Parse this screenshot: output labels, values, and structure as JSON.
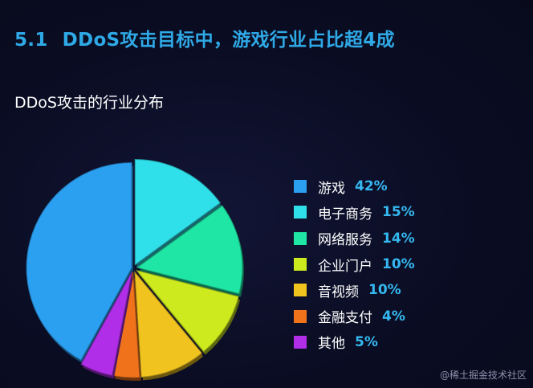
{
  "header": {
    "section_number": "5.1",
    "title": "DDoS攻击目标中，游戏行业占比超4成"
  },
  "chart_data": {
    "type": "pie",
    "title": "DDoS攻击的行业分布",
    "slices": [
      {
        "label": "游戏",
        "value": 42,
        "display": "42%",
        "color": "#2b9ff0"
      },
      {
        "label": "电子商务",
        "value": 15,
        "display": "15%",
        "color": "#2fe0ea"
      },
      {
        "label": "网络服务",
        "value": 14,
        "display": "14%",
        "color": "#1fe6a4"
      },
      {
        "label": "企业门户",
        "value": 10,
        "display": "10%",
        "color": "#cdea1e"
      },
      {
        "label": "音视频",
        "value": 10,
        "display": "10%",
        "color": "#f0c31f"
      },
      {
        "label": "金融支付",
        "value": 4,
        "display": "4%",
        "color": "#f0731c"
      },
      {
        "label": "其他",
        "value": 5,
        "display": "5%",
        "color": "#b12ee8"
      }
    ],
    "legend_position": "right"
  },
  "watermark": "@稀土掘金技术社区"
}
